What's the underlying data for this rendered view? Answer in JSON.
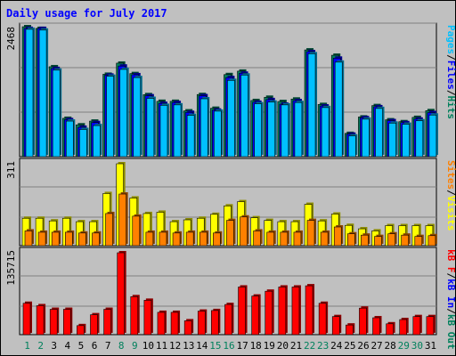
{
  "chart_data": [
    {
      "type": "bar",
      "title": "Daily usage for July 2017",
      "panel": "hits-files-pages",
      "ymax_label": "2468",
      "ylim": [
        0,
        2468
      ],
      "categories": [
        "1",
        "2",
        "3",
        "4",
        "5",
        "6",
        "7",
        "8",
        "9",
        "10",
        "11",
        "12",
        "13",
        "14",
        "15",
        "16",
        "17",
        "18",
        "19",
        "20",
        "21",
        "22",
        "23",
        "24",
        "25",
        "26",
        "27",
        "28",
        "29",
        "30",
        "31"
      ],
      "weekend_days": [
        "1",
        "2",
        "8",
        "9",
        "15",
        "16",
        "22",
        "23",
        "29",
        "30"
      ],
      "series": [
        {
          "name": "Hits",
          "color": "#00805c",
          "values": [
            2468,
            2436,
            1708,
            728,
            604,
            675,
            1565,
            1776,
            1578,
            1178,
            1051,
            1051,
            870,
            1180,
            919,
            1559,
            1624,
            1066,
            1128,
            1047,
            1094,
            2027,
            991,
            1926,
            442,
            754,
            970,
            700,
            664,
            746,
            874
          ]
        },
        {
          "name": "Files",
          "color": "#0000ff",
          "values": [
            2436,
            2436,
            1675,
            703,
            558,
            648,
            1549,
            1721,
            1556,
            1156,
            1012,
            1028,
            841,
            1158,
            884,
            1502,
            1585,
            1033,
            1084,
            997,
            1064,
            1995,
            963,
            1871,
            427,
            740,
            948,
            684,
            646,
            714,
            837
          ]
        },
        {
          "name": "Pages",
          "color": "#00c0ff",
          "values": [
            2419,
            2404,
            1643,
            675,
            516,
            590,
            1527,
            1657,
            1502,
            1107,
            974,
            983,
            784,
            1099,
            864,
            1448,
            1550,
            1004,
            1036,
            983,
            1028,
            1954,
            932,
            1795,
            393,
            712,
            915,
            637,
            615,
            681,
            790
          ]
        }
      ]
    },
    {
      "type": "bar",
      "panel": "visits-sites",
      "ymax_label": "311",
      "ylim": [
        0,
        311
      ],
      "categories": [
        "1",
        "2",
        "3",
        "4",
        "5",
        "6",
        "7",
        "8",
        "9",
        "10",
        "11",
        "12",
        "13",
        "14",
        "15",
        "16",
        "17",
        "18",
        "19",
        "20",
        "21",
        "22",
        "23",
        "24",
        "25",
        "26",
        "27",
        "28",
        "29",
        "30",
        "31"
      ],
      "series": [
        {
          "name": "Visits",
          "color": "#ffff00",
          "values": [
            104,
            104,
            94,
            104,
            91,
            91,
            198,
            311,
            181,
            122,
            127,
            91,
            98,
            104,
            119,
            151,
            167,
            106,
            96,
            91,
            91,
            157,
            94,
            120,
            77,
            64,
            56,
            76,
            76,
            76,
            76
          ]
        },
        {
          "name": "Sites",
          "color": "#ff8000",
          "values": [
            56,
            51,
            51,
            51,
            48,
            48,
            122,
            196,
            112,
            51,
            51,
            48,
            51,
            51,
            48,
            96,
            109,
            56,
            51,
            51,
            51,
            96,
            51,
            71,
            45,
            40,
            35,
            45,
            40,
            35,
            38
          ]
        }
      ]
    },
    {
      "type": "bar",
      "panel": "kbytes",
      "ymax_label": "135715",
      "ylim": [
        0,
        135715
      ],
      "categories": [
        "1",
        "2",
        "3",
        "4",
        "5",
        "6",
        "7",
        "8",
        "9",
        "10",
        "11",
        "12",
        "13",
        "14",
        "15",
        "16",
        "17",
        "18",
        "19",
        "20",
        "21",
        "22",
        "23",
        "24",
        "25",
        "26",
        "27",
        "28",
        "29",
        "30",
        "31"
      ],
      "series": [
        {
          "name": "KBytes F",
          "color": "#ff0000",
          "values": [
            52000,
            48000,
            42000,
            42000,
            15000,
            33000,
            42000,
            135715,
            63000,
            57000,
            37000,
            37000,
            23000,
            39000,
            40000,
            50000,
            79000,
            64000,
            72000,
            79000,
            79000,
            81000,
            52000,
            30000,
            16000,
            44000,
            28000,
            18000,
            25000,
            30000,
            30000
          ]
        }
      ]
    }
  ],
  "legend_right": {
    "panel1": [
      {
        "text": "Pages",
        "color": "#00c0ff"
      },
      {
        "text": "/",
        "color": "#000000"
      },
      {
        "text": "Files",
        "color": "#0000ff"
      },
      {
        "text": "/",
        "color": "#000000"
      },
      {
        "text": "Hits",
        "color": "#00805c"
      }
    ],
    "panel2": [
      {
        "text": "Sites",
        "color": "#ff8000"
      },
      {
        "text": "/",
        "color": "#000000"
      },
      {
        "text": "Visits",
        "color": "#ffff00"
      }
    ],
    "panel3": [
      {
        "text": "kB F",
        "color": "#ff0000"
      },
      {
        "text": "/",
        "color": "#000000"
      },
      {
        "text": "kB In",
        "color": "#0000ff"
      },
      {
        "text": "/",
        "color": "#000000"
      },
      {
        "text": "kB Out",
        "color": "#00805c"
      }
    ]
  },
  "colors": {
    "background": "#c0c0c0",
    "panel": "#c0c0c0",
    "title": "#0000ff",
    "weekend_label": "#00805c",
    "weekday_label": "#000000"
  }
}
